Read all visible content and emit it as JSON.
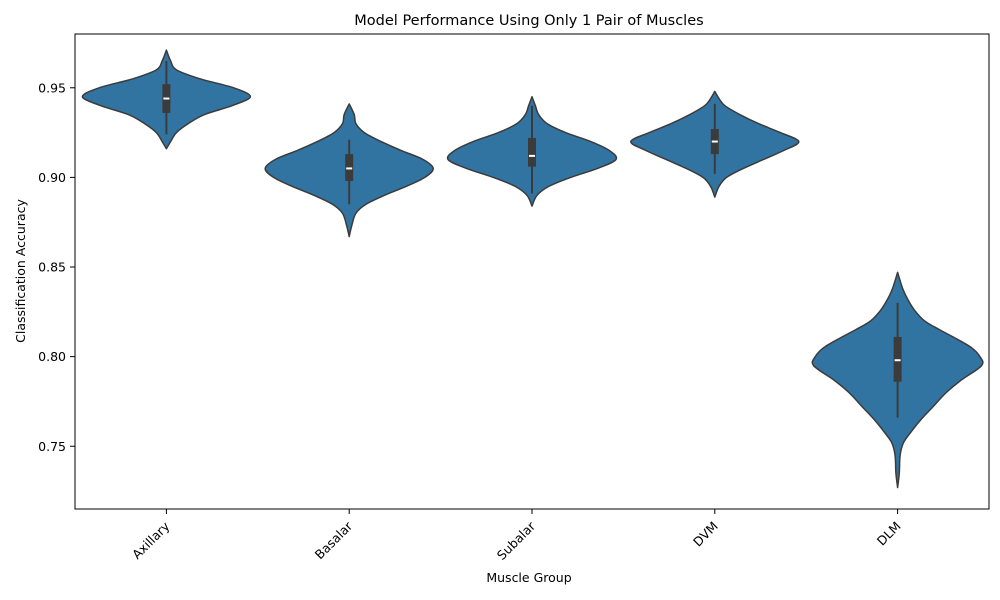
{
  "chart_data": {
    "type": "violin",
    "title": "Model Performance Using Only 1 Pair of Muscles",
    "xlabel": "Muscle Group",
    "ylabel": "Classification Accuracy",
    "categories": [
      "Axillary",
      "Basalar",
      "Subalar",
      "DVM",
      "DLM"
    ],
    "ylim": [
      0.715,
      0.98
    ],
    "yticks": [
      0.75,
      0.8,
      0.85,
      0.9,
      0.95
    ],
    "ytick_labels": [
      "0.75",
      "0.80",
      "0.85",
      "0.90",
      "0.95"
    ],
    "grid": false,
    "legend": "none",
    "color": "#3274a1",
    "edge_color": "#3b3b3b",
    "violins": [
      {
        "name": "Axillary",
        "min": 0.916,
        "q1": 0.936,
        "median": 0.944,
        "q3": 0.952,
        "max": 0.971,
        "whisker_low": 0.924,
        "whisker_high": 0.965,
        "profile": [
          [
            0.916,
            0.0
          ],
          [
            0.92,
            0.05
          ],
          [
            0.925,
            0.12
          ],
          [
            0.93,
            0.26
          ],
          [
            0.935,
            0.45
          ],
          [
            0.94,
            0.78
          ],
          [
            0.945,
            1.0
          ],
          [
            0.95,
            0.8
          ],
          [
            0.955,
            0.4
          ],
          [
            0.96,
            0.12
          ],
          [
            0.965,
            0.05
          ],
          [
            0.971,
            0.0
          ]
        ]
      },
      {
        "name": "Basalar",
        "min": 0.867,
        "q1": 0.898,
        "median": 0.905,
        "q3": 0.913,
        "max": 0.941,
        "whisker_low": 0.885,
        "whisker_high": 0.921,
        "profile": [
          [
            0.867,
            0.0
          ],
          [
            0.873,
            0.03
          ],
          [
            0.88,
            0.08
          ],
          [
            0.885,
            0.2
          ],
          [
            0.89,
            0.42
          ],
          [
            0.895,
            0.68
          ],
          [
            0.9,
            0.9
          ],
          [
            0.905,
            1.0
          ],
          [
            0.91,
            0.88
          ],
          [
            0.915,
            0.62
          ],
          [
            0.92,
            0.38
          ],
          [
            0.925,
            0.18
          ],
          [
            0.93,
            0.08
          ],
          [
            0.935,
            0.06
          ],
          [
            0.941,
            0.0
          ]
        ]
      },
      {
        "name": "Subalar",
        "min": 0.884,
        "q1": 0.906,
        "median": 0.912,
        "q3": 0.922,
        "max": 0.945,
        "whisker_low": 0.891,
        "whisker_high": 0.94,
        "profile": [
          [
            0.884,
            0.0
          ],
          [
            0.89,
            0.06
          ],
          [
            0.895,
            0.2
          ],
          [
            0.9,
            0.46
          ],
          [
            0.905,
            0.78
          ],
          [
            0.91,
            1.0
          ],
          [
            0.915,
            0.92
          ],
          [
            0.92,
            0.7
          ],
          [
            0.925,
            0.4
          ],
          [
            0.93,
            0.18
          ],
          [
            0.935,
            0.08
          ],
          [
            0.94,
            0.04
          ],
          [
            0.945,
            0.0
          ]
        ]
      },
      {
        "name": "DVM",
        "min": 0.889,
        "q1": 0.913,
        "median": 0.92,
        "q3": 0.927,
        "max": 0.948,
        "whisker_low": 0.902,
        "whisker_high": 0.941,
        "profile": [
          [
            0.889,
            0.0
          ],
          [
            0.895,
            0.05
          ],
          [
            0.9,
            0.14
          ],
          [
            0.905,
            0.34
          ],
          [
            0.91,
            0.58
          ],
          [
            0.915,
            0.82
          ],
          [
            0.92,
            1.0
          ],
          [
            0.925,
            0.78
          ],
          [
            0.93,
            0.52
          ],
          [
            0.935,
            0.3
          ],
          [
            0.94,
            0.12
          ],
          [
            0.944,
            0.05
          ],
          [
            0.948,
            0.0
          ]
        ]
      },
      {
        "name": "DLM",
        "min": 0.727,
        "q1": 0.786,
        "median": 0.798,
        "q3": 0.811,
        "max": 0.847,
        "whisker_low": 0.766,
        "whisker_high": 0.83,
        "profile": [
          [
            0.727,
            0.0
          ],
          [
            0.735,
            0.02
          ],
          [
            0.745,
            0.03
          ],
          [
            0.752,
            0.07
          ],
          [
            0.758,
            0.16
          ],
          [
            0.765,
            0.28
          ],
          [
            0.772,
            0.42
          ],
          [
            0.78,
            0.58
          ],
          [
            0.787,
            0.76
          ],
          [
            0.795,
            1.0
          ],
          [
            0.8,
            0.98
          ],
          [
            0.805,
            0.88
          ],
          [
            0.81,
            0.7
          ],
          [
            0.815,
            0.5
          ],
          [
            0.82,
            0.32
          ],
          [
            0.826,
            0.2
          ],
          [
            0.832,
            0.12
          ],
          [
            0.838,
            0.06
          ],
          [
            0.847,
            0.0
          ]
        ]
      }
    ]
  }
}
